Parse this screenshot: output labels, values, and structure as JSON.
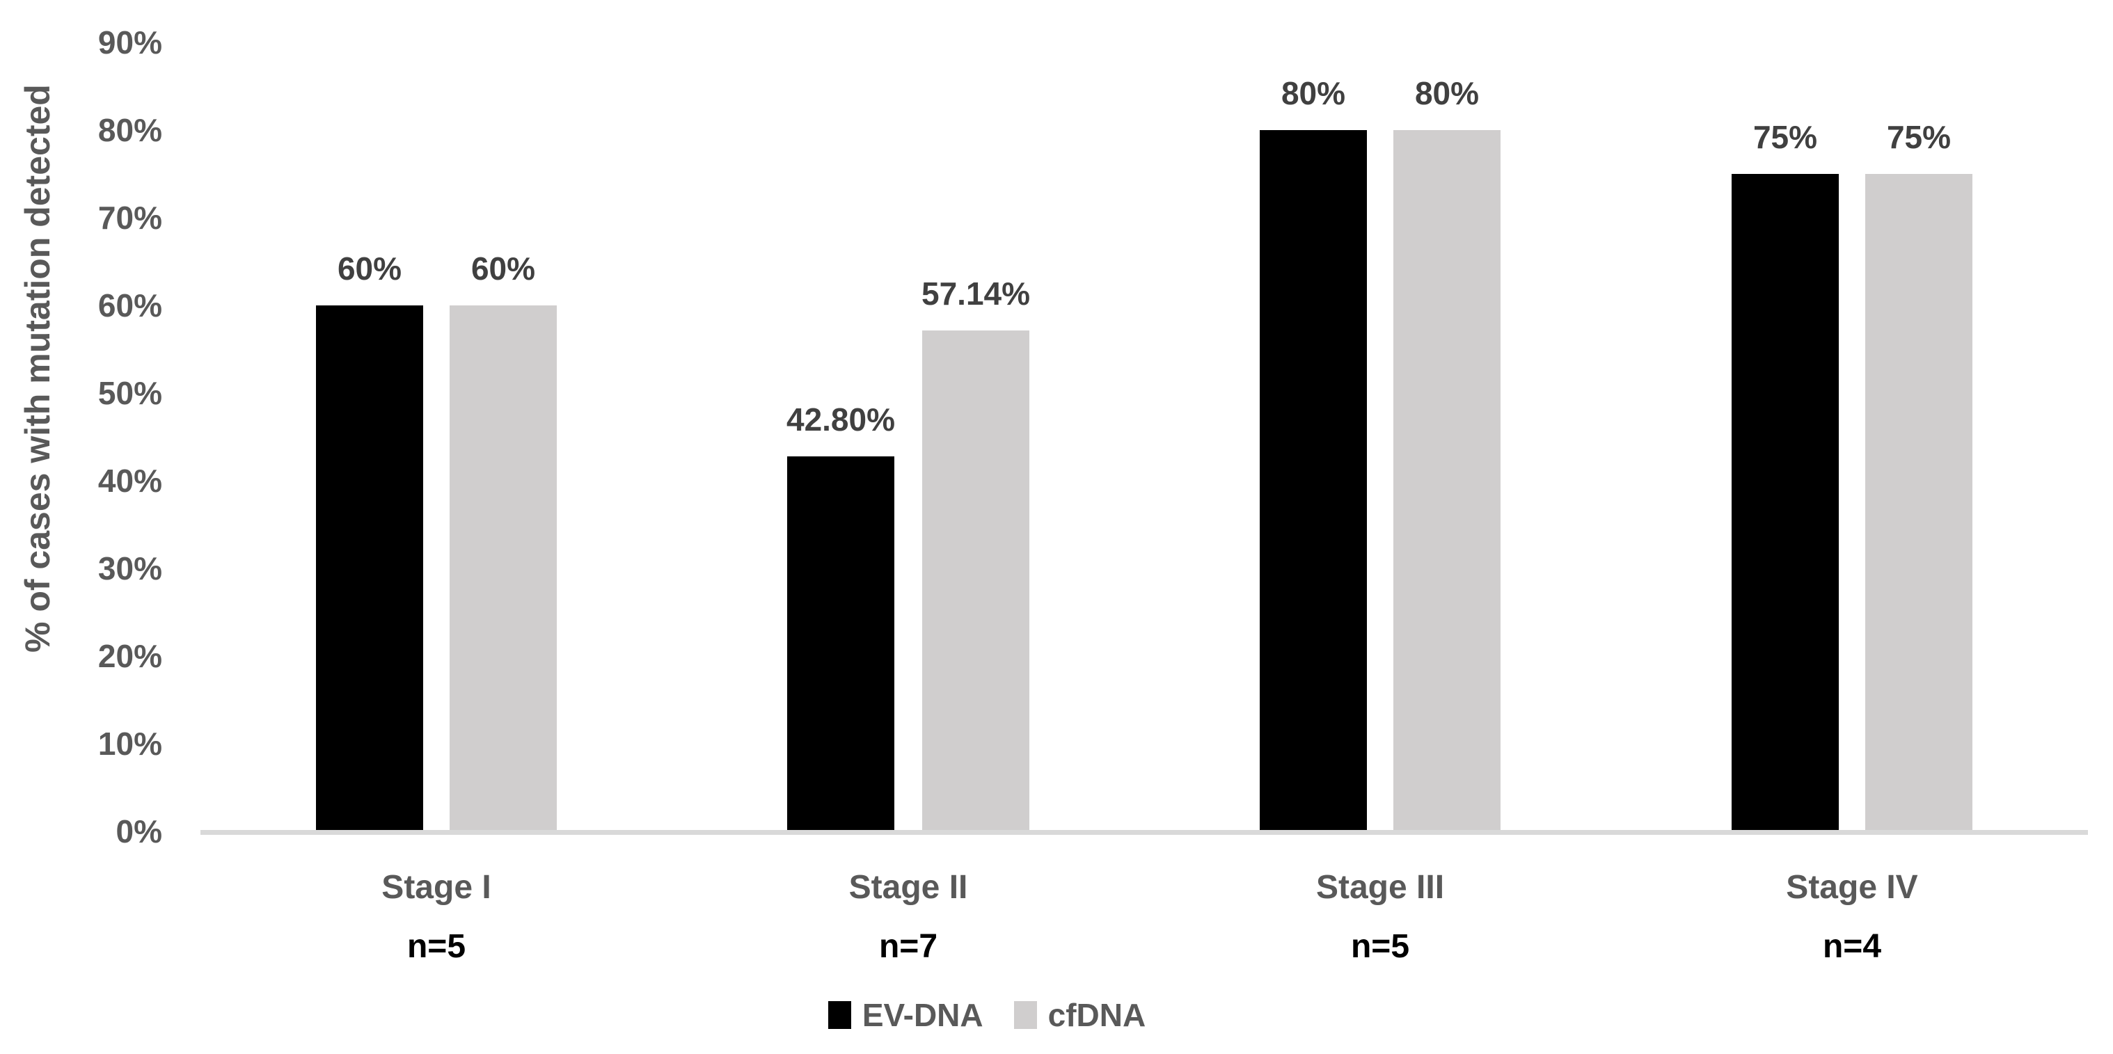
{
  "chart_data": {
    "type": "bar",
    "title": "",
    "ylabel": "% of cases with mutation detected",
    "xlabel": "",
    "ylim": [
      0,
      90
    ],
    "yticks": [
      "0%",
      "10%",
      "20%",
      "30%",
      "40%",
      "50%",
      "60%",
      "70%",
      "80%",
      "90%"
    ],
    "ytick_values": [
      0,
      10,
      20,
      30,
      40,
      50,
      60,
      70,
      80,
      90
    ],
    "grid": false,
    "legend_position": "bottom",
    "categories": [
      "Stage I",
      "Stage II",
      "Stage III",
      "Stage IV"
    ],
    "n_labels": [
      "n=5",
      "n=7",
      "n=5",
      "n=4"
    ],
    "series": [
      {
        "name": "EV-DNA",
        "color": "#000000",
        "values": [
          60,
          42.8,
          80,
          75
        ],
        "value_labels": [
          "60%",
          "42.80%",
          "80%",
          "75%"
        ]
      },
      {
        "name": "cfDNA",
        "color": "#d0cece",
        "values": [
          60,
          57.14,
          80,
          75
        ],
        "value_labels": [
          "60%",
          "57.14%",
          "80%",
          "75%"
        ]
      }
    ],
    "colors": {
      "axis_line": "#d9d9d9",
      "tick_text": "#595959",
      "category_text": "#595959",
      "data_label_text": "#404040",
      "n_label_text": "#000000",
      "legend_text": "#595959",
      "background": "#ffffff"
    }
  }
}
